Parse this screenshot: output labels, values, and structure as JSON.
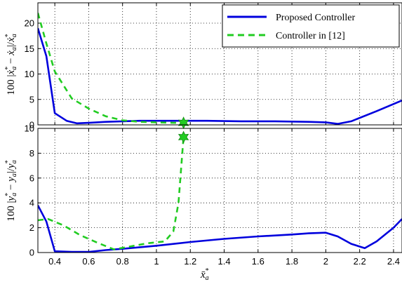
{
  "chart_data": [
    {
      "type": "line",
      "ylabel": "100 |ẋ*ₐ − ẋₐ|/ẋ*ₐ",
      "xlim": [
        0.3,
        2.45
      ],
      "ylim": [
        0,
        24
      ],
      "yticks": [
        0,
        5,
        10,
        15,
        20
      ],
      "grid": true,
      "legend": {
        "position": "top-right"
      },
      "series": [
        {
          "name": "Proposed Controller",
          "color": "#0000dd",
          "style": "solid",
          "x": [
            0.3,
            0.35,
            0.4,
            0.47,
            0.53,
            0.6,
            0.7,
            0.9,
            1.1,
            1.3,
            1.5,
            1.7,
            1.9,
            2.0,
            2.07,
            2.15,
            2.3,
            2.45
          ],
          "y": [
            19,
            13.5,
            2.3,
            0.8,
            0.3,
            0.4,
            0.6,
            0.8,
            0.8,
            0.8,
            0.7,
            0.7,
            0.6,
            0.5,
            0.2,
            0.7,
            2.7,
            4.8
          ]
        },
        {
          "name": "Controller in [12]",
          "color": "#22cc22",
          "style": "dashed",
          "x": [
            0.3,
            0.35,
            0.4,
            0.5,
            0.6,
            0.7,
            0.8,
            0.9,
            1.0,
            1.1,
            1.16
          ],
          "y": [
            22,
            16,
            10.5,
            5.2,
            3.2,
            1.7,
            0.9,
            0.6,
            0.5,
            0.4,
            0.4
          ]
        }
      ],
      "markers": [
        {
          "series": "Controller in [12]",
          "x": 1.16,
          "y": 0.4,
          "shape": "star"
        }
      ]
    },
    {
      "type": "line",
      "xlabel": "x̄*ₐ",
      "ylabel": "100 |y*ₐ − yₐ|/y*ₐ",
      "xlim": [
        0.3,
        2.45
      ],
      "ylim": [
        0,
        10
      ],
      "xticks": [
        0.4,
        0.6,
        0.8,
        1,
        1.2,
        1.4,
        1.6,
        1.8,
        2,
        2.2,
        2.4
      ],
      "yticks": [
        0,
        2,
        4,
        6,
        8,
        10
      ],
      "grid": true,
      "series": [
        {
          "name": "Proposed Controller",
          "color": "#0000dd",
          "style": "solid",
          "x": [
            0.3,
            0.35,
            0.4,
            0.5,
            0.6,
            0.7,
            0.8,
            1.0,
            1.2,
            1.4,
            1.6,
            1.8,
            1.9,
            2.0,
            2.07,
            2.15,
            2.23,
            2.3,
            2.4,
            2.45
          ],
          "y": [
            3.8,
            2.5,
            0.1,
            0.05,
            0.05,
            0.2,
            0.3,
            0.55,
            0.85,
            1.1,
            1.3,
            1.45,
            1.55,
            1.6,
            1.3,
            0.7,
            0.35,
            0.9,
            2.0,
            2.7
          ]
        },
        {
          "name": "Controller in [12]",
          "color": "#22cc22",
          "style": "dashed",
          "x": [
            0.3,
            0.36,
            0.45,
            0.55,
            0.65,
            0.75,
            0.85,
            0.95,
            1.05,
            1.1,
            1.13,
            1.16
          ],
          "y": [
            2.6,
            2.7,
            2.2,
            1.4,
            0.8,
            0.25,
            0.5,
            0.75,
            0.9,
            1.7,
            4.0,
            9.3
          ]
        }
      ],
      "markers": [
        {
          "series": "Controller in [12]",
          "x": 1.16,
          "y": 9.3,
          "shape": "star"
        }
      ]
    }
  ],
  "text": {
    "legend_proposed": "Proposed Controller",
    "legend_ctrl12": "Controller in [12]"
  }
}
